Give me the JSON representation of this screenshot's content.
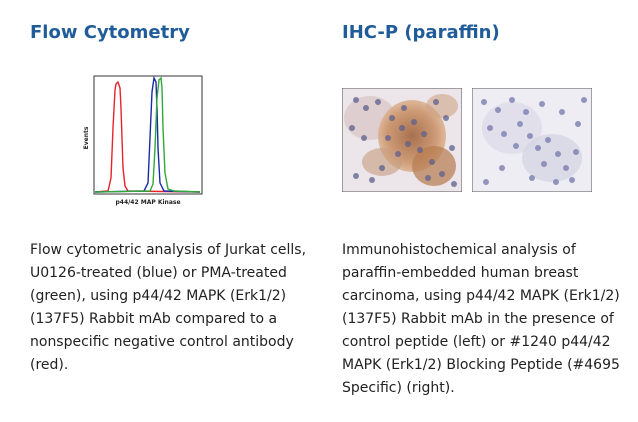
{
  "flow_cytometry": {
    "title": "Flow Cytometry",
    "figure": {
      "ylabel": "Events",
      "xlabel": "p44/42 MAP Kinase"
    },
    "caption": "Flow cytometric analysis of Jurkat cells, U0126-treated (blue) or PMA-treated (green), using p44/42 MAPK (Erk1/2) (137F5) Rabbit mAb compared to a nonspecific negative control antibody (red).",
    "series_colors": {
      "red": "#e8212a",
      "blue": "#1c2aa8",
      "green": "#2fa83a"
    }
  },
  "ihc": {
    "title": "IHC-P (paraffin)",
    "caption": "Immunohistochemical analysis of paraffin-embedded human breast carcinoma, using p44/42 MAPK (Erk1/2) (137F5) Rabbit mAb in the presence of control peptide (left) or #1240 p44/42 MAPK (Erk1/2) Blocking Peptide (#4695 Specific) (right).",
    "images": [
      {
        "name": "control-peptide-stained",
        "stain_color": "#a0663a"
      },
      {
        "name": "blocking-peptide-unstained",
        "stain_color": "#8a8fb8"
      }
    ]
  },
  "colors": {
    "heading": "#1f5c99",
    "text": "#222222"
  }
}
